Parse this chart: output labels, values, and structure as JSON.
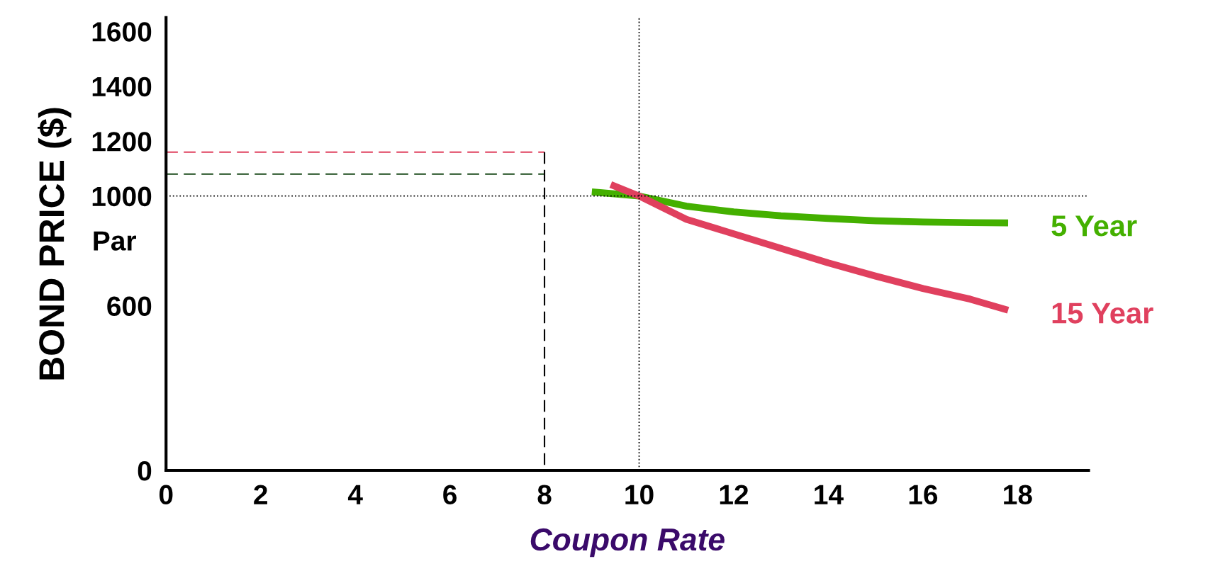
{
  "chart_data": {
    "type": "line",
    "xlabel": "Coupon Rate",
    "ylabel": "BOND PRICE ($)",
    "xlim": [
      0,
      19.5
    ],
    "xticks": [
      0,
      2,
      4,
      6,
      8,
      10,
      12,
      14,
      16,
      18
    ],
    "ylim": [
      0,
      1650
    ],
    "yticks": [
      0,
      600,
      1000,
      1200,
      1400,
      1600
    ],
    "grid": false,
    "marker": "none",
    "series": [
      {
        "name": "5 Year",
        "color": "#44b000",
        "x": [
          9.0,
          10,
          11,
          12,
          13,
          14,
          15,
          16,
          17,
          17.8
        ],
        "values": [
          1015,
          1000,
          963,
          942,
          928,
          918,
          910,
          905,
          903,
          902
        ]
      },
      {
        "name": "15 Year",
        "color": "#e0405e",
        "x": [
          9.4,
          10,
          11,
          12,
          13,
          14,
          15,
          16,
          17,
          17.8
        ],
        "values": [
          1042,
          1000,
          915,
          862,
          809,
          756,
          708,
          663,
          624,
          584
        ]
      },
      {
        "color": "#e0405e",
        "line_style": "dashed",
        "x": [
          0,
          8
        ],
        "values": [
          1160,
          1160
        ]
      },
      {
        "color": "#1a4a1a",
        "line_style": "dashed",
        "x": [
          0,
          8
        ],
        "values": [
          1080,
          1080
        ]
      },
      {
        "color": "#000000",
        "line_style": "dashed",
        "x": [
          8,
          8
        ],
        "values": [
          1160,
          0
        ]
      }
    ],
    "ref_lines": [
      {
        "axis": "y",
        "value": 1000,
        "color": "#000000",
        "line_style": "dotted"
      },
      {
        "axis": "x",
        "value": 10,
        "color": "#000000",
        "line_style": "dotted"
      }
    ],
    "annotations": [
      "Par"
    ]
  }
}
